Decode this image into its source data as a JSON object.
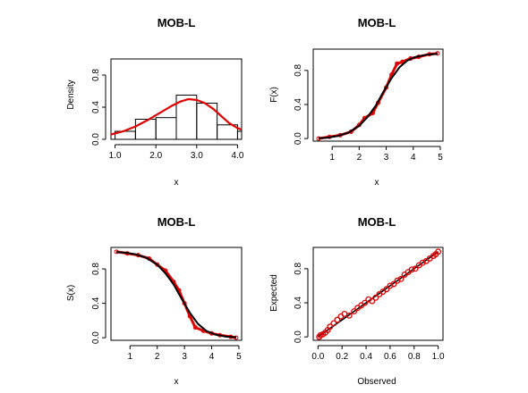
{
  "colors": {
    "fit": "#e00000",
    "empirical": "#000000",
    "bars": "#000000"
  },
  "chart_data": [
    {
      "type": "bar",
      "subtype": "histogram-with-density",
      "title": "MOB-L",
      "xlabel": "x",
      "ylabel": "Density",
      "xlim": [
        0.9,
        4.1
      ],
      "ylim": [
        0,
        1.0
      ],
      "xticks": [
        1.0,
        2.0,
        3.0,
        4.0
      ],
      "xtick_labels": [
        "1.0",
        "2.0",
        "3.0",
        "4.0"
      ],
      "yticks": [
        0.0,
        0.4,
        0.8
      ],
      "ytick_labels": [
        "0.0",
        "0.4",
        "0.8"
      ],
      "bins": [
        {
          "x0": 1.0,
          "x1": 1.5,
          "density": 0.1
        },
        {
          "x0": 1.5,
          "x1": 2.0,
          "density": 0.25
        },
        {
          "x0": 2.0,
          "x1": 2.5,
          "density": 0.27
        },
        {
          "x0": 2.5,
          "x1": 3.0,
          "density": 0.55
        },
        {
          "x0": 3.0,
          "x1": 3.5,
          "density": 0.45
        },
        {
          "x0": 3.5,
          "x1": 4.0,
          "density": 0.18
        },
        {
          "x0": 4.0,
          "x1": 4.1,
          "density": 0.1
        }
      ],
      "series": [
        {
          "x": [
            0.9,
            1.2,
            1.5,
            1.8,
            2.1,
            2.4,
            2.6,
            2.8,
            3.0,
            3.2,
            3.4,
            3.6,
            3.8,
            4.0,
            4.1
          ],
          "y": [
            0.06,
            0.1,
            0.16,
            0.24,
            0.33,
            0.42,
            0.47,
            0.5,
            0.49,
            0.45,
            0.38,
            0.29,
            0.2,
            0.14,
            0.12
          ]
        }
      ]
    },
    {
      "type": "line",
      "title": "MOB-L",
      "xlabel": "x",
      "ylabel": "F(x)",
      "xlim": [
        0.3,
        5.1
      ],
      "ylim": [
        -0.03,
        1.05
      ],
      "xticks": [
        1,
        2,
        3,
        4,
        5
      ],
      "xtick_labels": [
        "1",
        "2",
        "3",
        "4",
        "5"
      ],
      "yticks": [
        0.0,
        0.4,
        0.8
      ],
      "ytick_labels": [
        "0.0",
        "0.4",
        "0.8"
      ],
      "series": [
        {
          "x": [
            0.5,
            0.8,
            1.2,
            1.6,
            2.0,
            2.3,
            2.6,
            2.9,
            3.2,
            3.5,
            3.8,
            4.1,
            4.5,
            4.9
          ],
          "y": [
            0.005,
            0.01,
            0.03,
            0.07,
            0.15,
            0.25,
            0.38,
            0.55,
            0.71,
            0.84,
            0.92,
            0.96,
            0.985,
            0.995
          ]
        },
        {
          "x": [
            0.5,
            0.9,
            1.3,
            1.7,
            2.0,
            2.2,
            2.5,
            2.7,
            3.0,
            3.2,
            3.4,
            3.6,
            3.9,
            4.2,
            4.6,
            4.9
          ],
          "y": [
            0.0,
            0.02,
            0.04,
            0.08,
            0.16,
            0.24,
            0.3,
            0.42,
            0.6,
            0.75,
            0.88,
            0.9,
            0.94,
            0.96,
            0.99,
            1.0
          ]
        }
      ]
    },
    {
      "type": "line",
      "title": "MOB-L",
      "xlabel": "x",
      "ylabel": "S(x)",
      "xlim": [
        0.3,
        5.1
      ],
      "ylim": [
        -0.03,
        1.05
      ],
      "xticks": [
        1,
        2,
        3,
        4,
        5
      ],
      "xtick_labels": [
        "1",
        "2",
        "3",
        "4",
        "5"
      ],
      "yticks": [
        0.0,
        0.4,
        0.8
      ],
      "ytick_labels": [
        "0.0",
        "0.4",
        "0.8"
      ],
      "series": [
        {
          "x": [
            0.5,
            0.8,
            1.2,
            1.6,
            2.0,
            2.3,
            2.6,
            2.9,
            3.2,
            3.5,
            3.8,
            4.1,
            4.5,
            4.9
          ],
          "y": [
            0.995,
            0.99,
            0.97,
            0.93,
            0.85,
            0.75,
            0.62,
            0.45,
            0.29,
            0.16,
            0.08,
            0.04,
            0.015,
            0.005
          ]
        },
        {
          "x": [
            0.5,
            0.9,
            1.3,
            1.7,
            2.0,
            2.3,
            2.6,
            2.8,
            3.0,
            3.2,
            3.4,
            3.7,
            4.0,
            4.3,
            4.7,
            4.9
          ],
          "y": [
            1.0,
            0.98,
            0.96,
            0.92,
            0.85,
            0.78,
            0.65,
            0.55,
            0.4,
            0.25,
            0.12,
            0.08,
            0.05,
            0.03,
            0.01,
            0.0
          ]
        }
      ]
    },
    {
      "type": "scatter",
      "title": "MOB-L",
      "xlabel": "Observed",
      "ylabel": "Expected",
      "xlim": [
        -0.04,
        1.04
      ],
      "ylim": [
        -0.04,
        1.05
      ],
      "xticks": [
        0.0,
        0.2,
        0.4,
        0.6,
        0.8,
        1.0
      ],
      "xtick_labels": [
        "0.0",
        "0.2",
        "0.4",
        "0.6",
        "0.8",
        "1.0"
      ],
      "yticks": [
        0.0,
        0.4,
        0.8
      ],
      "ytick_labels": [
        "0.0",
        "0.4",
        "0.8"
      ],
      "reference_line": {
        "x": [
          0,
          1
        ],
        "y": [
          0,
          1
        ]
      },
      "series": [
        {
          "x": [
            0.01,
            0.02,
            0.04,
            0.06,
            0.08,
            0.1,
            0.13,
            0.16,
            0.19,
            0.22,
            0.26,
            0.3,
            0.33,
            0.36,
            0.39,
            0.42,
            0.45,
            0.48,
            0.51,
            0.54,
            0.57,
            0.6,
            0.63,
            0.66,
            0.69,
            0.72,
            0.75,
            0.78,
            0.81,
            0.84,
            0.87,
            0.9,
            0.93,
            0.96,
            0.98,
            1.0
          ],
          "y": [
            0.0,
            0.02,
            0.03,
            0.05,
            0.08,
            0.12,
            0.16,
            0.2,
            0.24,
            0.27,
            0.25,
            0.3,
            0.34,
            0.37,
            0.4,
            0.44,
            0.42,
            0.46,
            0.5,
            0.53,
            0.56,
            0.6,
            0.62,
            0.66,
            0.68,
            0.73,
            0.76,
            0.79,
            0.8,
            0.84,
            0.87,
            0.89,
            0.92,
            0.95,
            0.97,
            1.0
          ]
        }
      ]
    }
  ]
}
